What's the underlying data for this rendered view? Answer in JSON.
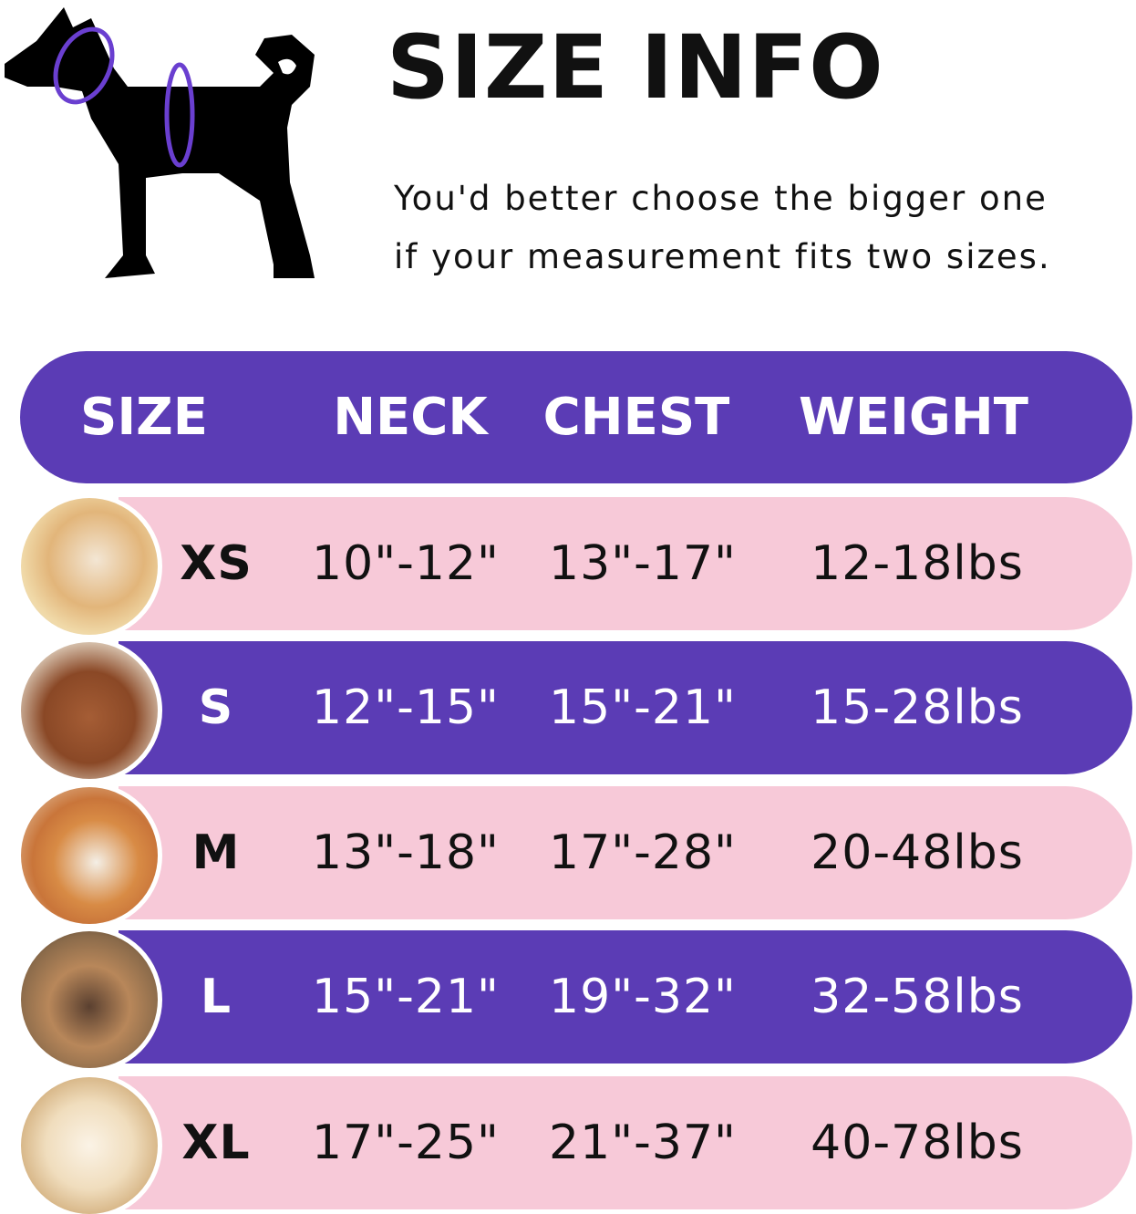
{
  "title": "SIZE INFO",
  "subtitle_lines": [
    "You'd better choose the bigger one",
    "if your measurement fits two sizes."
  ],
  "colors": {
    "purple": "#5b3cb5",
    "pink": "#f7c9d8",
    "measure_ring": "#6a3fd0"
  },
  "table": {
    "headers": [
      "SIZE",
      "NECK",
      "CHEST",
      "WEIGHT"
    ],
    "rows": [
      {
        "size": "XS",
        "neck": "10\"-12\"",
        "chest": "13\"-17\"",
        "weight": "12-18lbs",
        "photo": "pomeranian-photo",
        "style": "pink"
      },
      {
        "size": "S",
        "neck": "12\"-15\"",
        "chest": "15\"-21\"",
        "weight": "15-28lbs",
        "photo": "poodle-photo",
        "style": "purple"
      },
      {
        "size": "M",
        "neck": "13\"-18\"",
        "chest": "17\"-28\"",
        "weight": "20-48lbs",
        "photo": "shiba-photo",
        "style": "pink"
      },
      {
        "size": "L",
        "neck": "15\"-21\"",
        "chest": "19\"-32\"",
        "weight": "32-58lbs",
        "photo": "french-bulldog-photo",
        "style": "purple"
      },
      {
        "size": "XL",
        "neck": "17\"-25\"",
        "chest": "21\"-37\"",
        "weight": "40-78lbs",
        "photo": "labrador-photo",
        "style": "pink"
      }
    ]
  }
}
